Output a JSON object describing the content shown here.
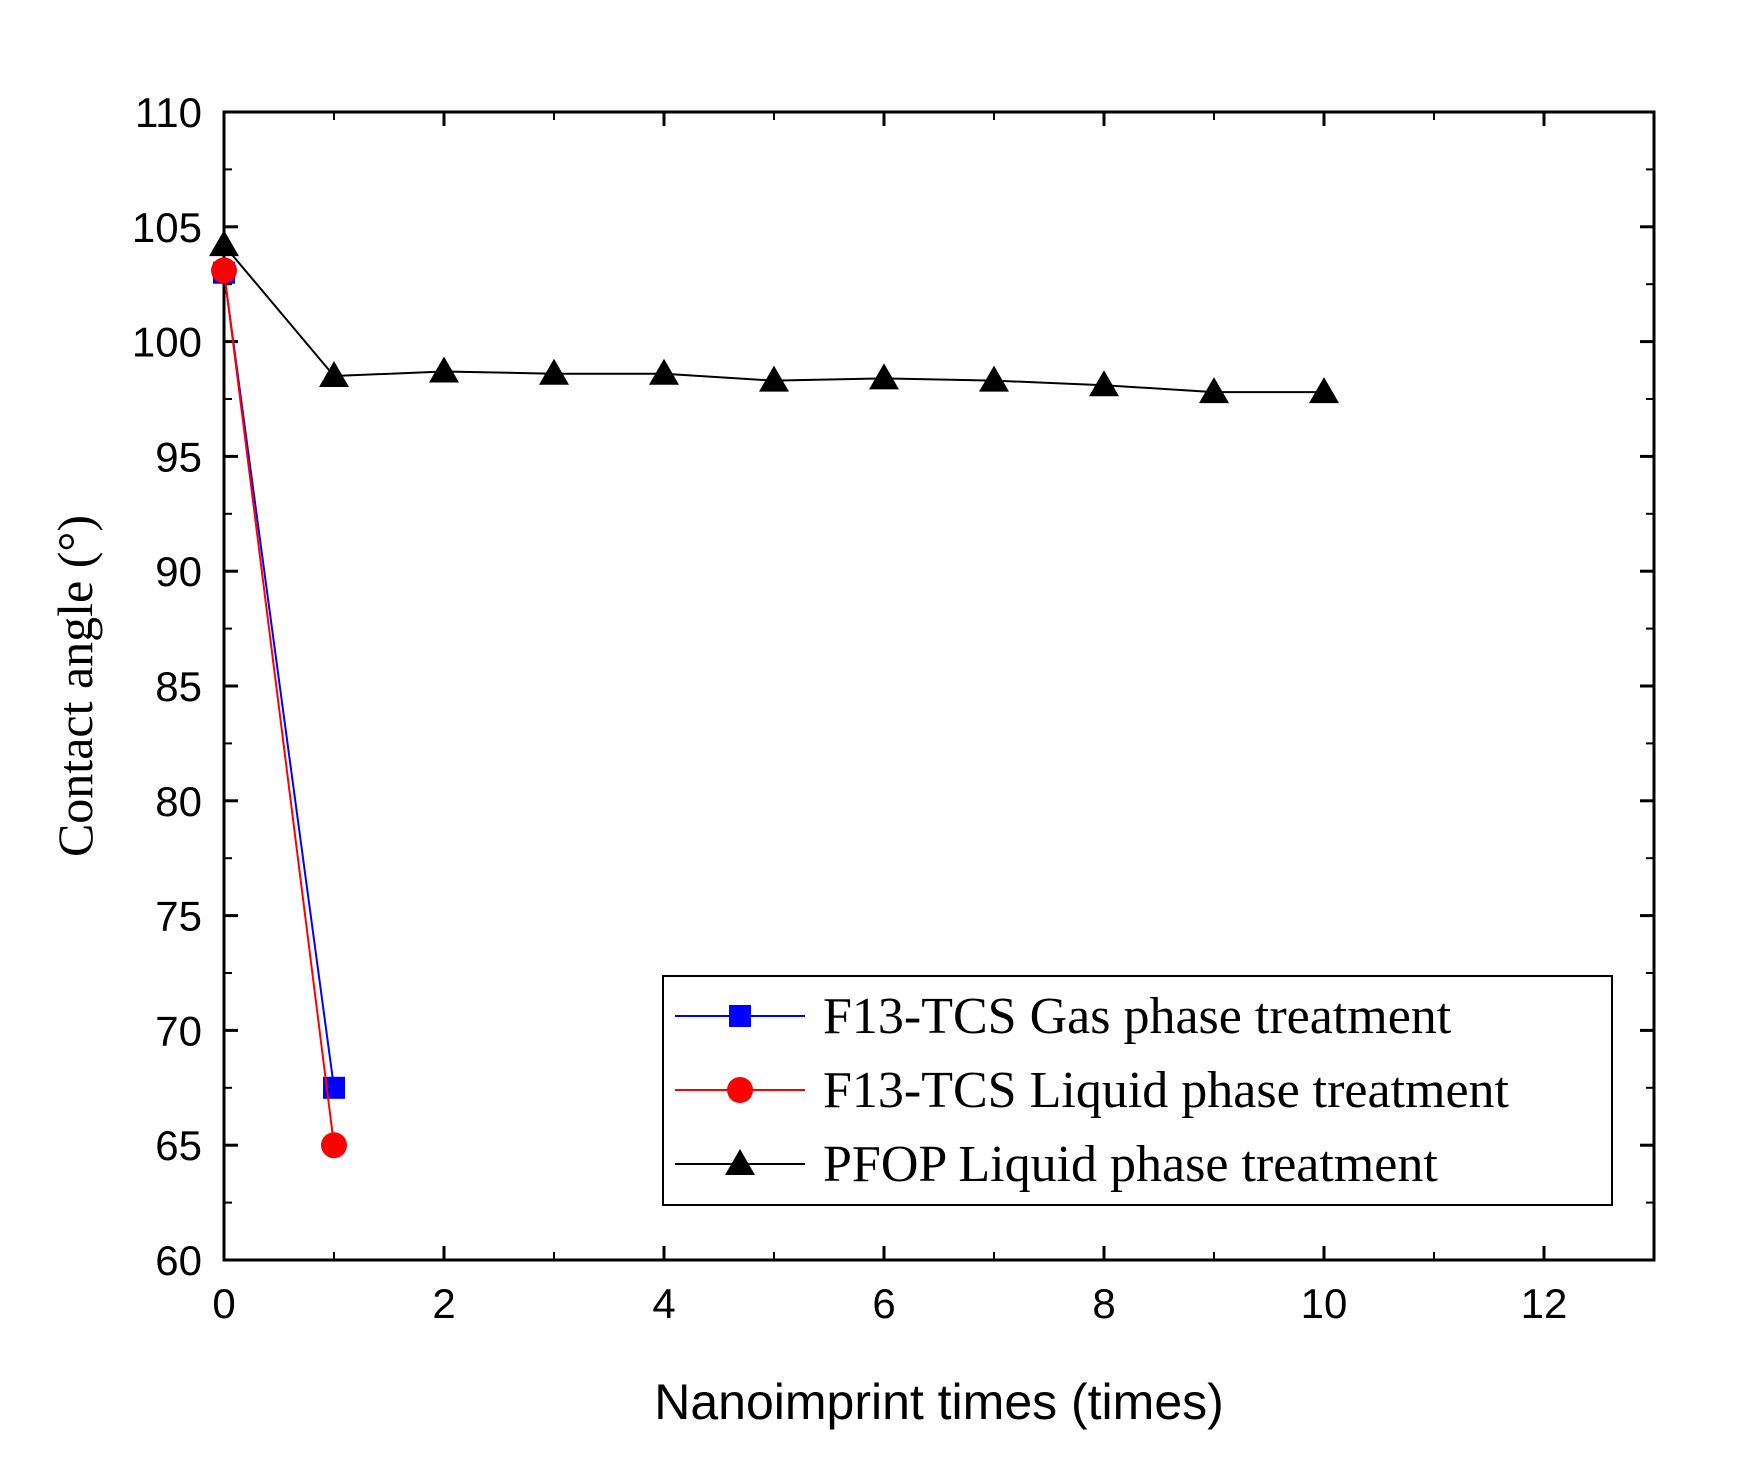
{
  "chart_data": {
    "type": "line",
    "title": "",
    "xlabel": "Nanoimprint times (times)",
    "ylabel": "Contact angle (°)",
    "xlim": [
      0,
      13
    ],
    "ylim": [
      60,
      110
    ],
    "xticks": [
      0,
      2,
      4,
      6,
      8,
      10,
      12
    ],
    "yticks": [
      60,
      65,
      70,
      75,
      80,
      85,
      90,
      95,
      100,
      105,
      110
    ],
    "xtick_labels": [
      "0",
      "2",
      "4",
      "6",
      "8",
      "10",
      "12"
    ],
    "ytick_labels": [
      "60",
      "65",
      "70",
      "75",
      "80",
      "85",
      "90",
      "95",
      "100",
      "105",
      "110"
    ],
    "legend_position": "bottom-right",
    "series": [
      {
        "name": "F13-TCS Gas phase treatment",
        "color": "#0000ff",
        "marker": "square",
        "x": [
          0,
          1
        ],
        "values": [
          103,
          67.5
        ]
      },
      {
        "name": "F13-TCS Liquid phase treatment",
        "color": "#ff0000",
        "marker": "circle",
        "x": [
          0,
          1
        ],
        "values": [
          103.1,
          65
        ]
      },
      {
        "name": "PFOP Liquid phase treatment",
        "color": "#000000",
        "marker": "triangle",
        "x": [
          0,
          1,
          2,
          3,
          4,
          5,
          6,
          7,
          8,
          9,
          10
        ],
        "values": [
          104.2,
          98.5,
          98.7,
          98.6,
          98.6,
          98.3,
          98.4,
          98.3,
          98.1,
          97.8,
          97.8
        ]
      }
    ]
  }
}
